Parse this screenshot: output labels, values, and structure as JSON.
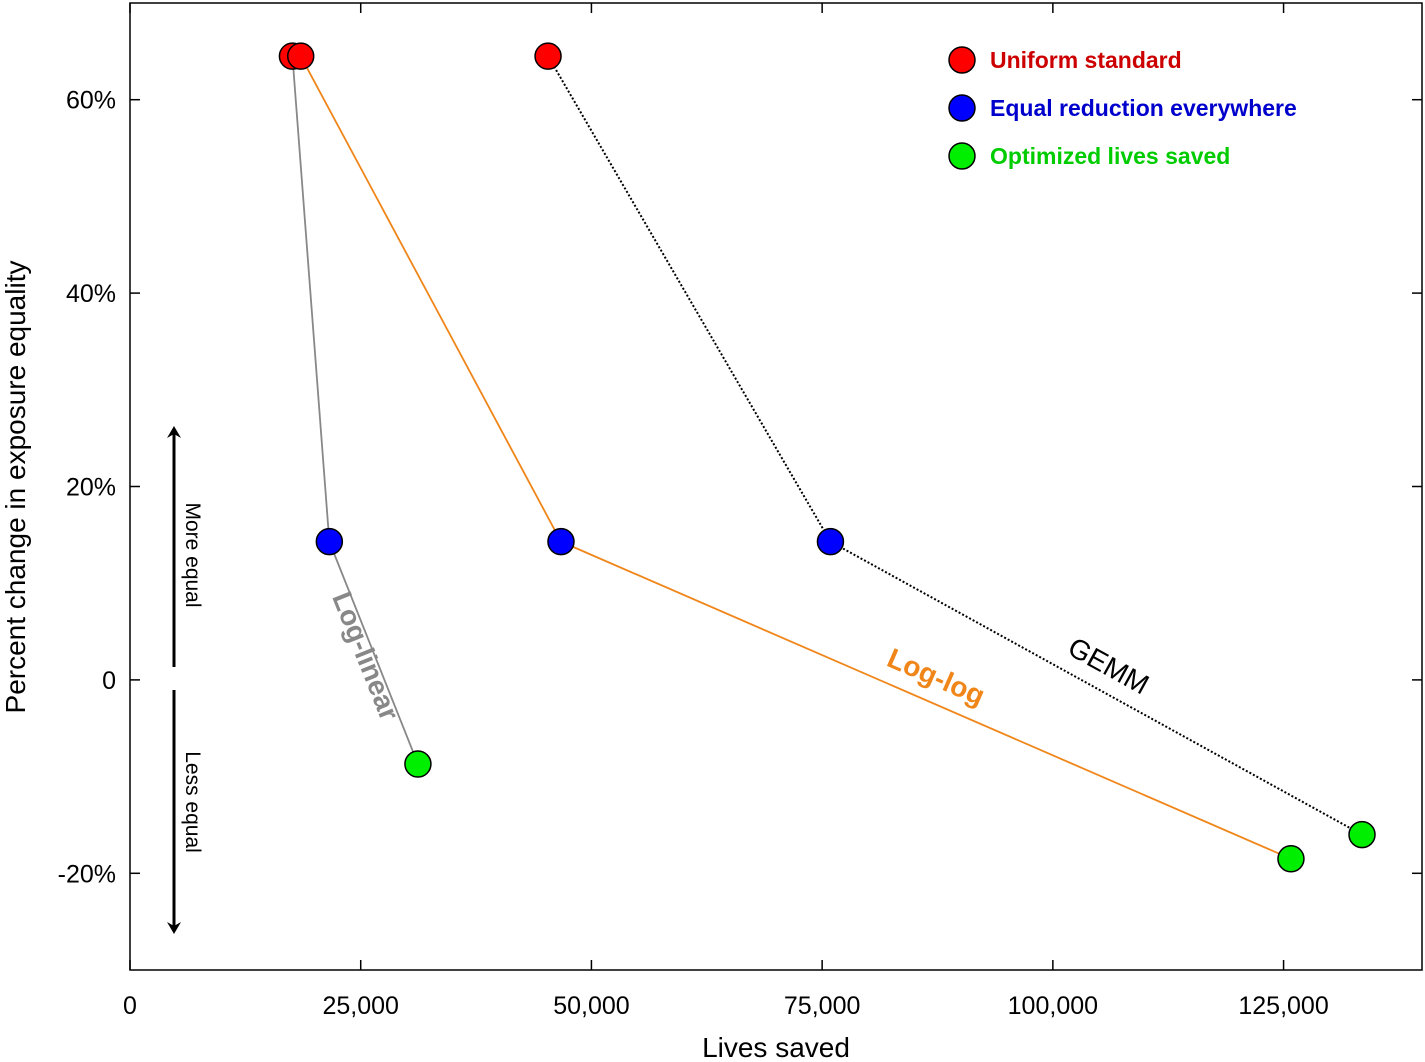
{
  "chart_data": {
    "type": "scatter",
    "title": "",
    "xlabel": "Lives saved",
    "ylabel": "Percent change in exposure equality",
    "xlim": [
      0,
      140000
    ],
    "ylim": [
      -30,
      70
    ],
    "x_ticks": [
      {
        "value": 0,
        "label": "0"
      },
      {
        "value": 25000,
        "label": "25,000"
      },
      {
        "value": 50000,
        "label": "50,000"
      },
      {
        "value": 75000,
        "label": "75,000"
      },
      {
        "value": 100000,
        "label": "100,000"
      },
      {
        "value": 125000,
        "label": "125,000"
      }
    ],
    "y_ticks": [
      {
        "value": -20,
        "label": "-20%"
      },
      {
        "value": 0,
        "label": "0"
      },
      {
        "value": 20,
        "label": "20%"
      },
      {
        "value": 40,
        "label": "40%"
      },
      {
        "value": 60,
        "label": "60%"
      }
    ],
    "grid": false,
    "legend_position": "top-right",
    "point_types": [
      {
        "key": "uniform",
        "name": "Uniform standard",
        "color": "#ff0000",
        "label_color": "#cc0000"
      },
      {
        "key": "equal",
        "name": "Equal reduction everywhere",
        "color": "#0000ff",
        "label_color": "#0000cc"
      },
      {
        "key": "optimized",
        "name": "Optimized lives saved",
        "color": "#00ee00",
        "label_color": "#00cc00"
      }
    ],
    "series": [
      {
        "name": "Log-linear",
        "line_color": "#888888",
        "label_color": "#888888",
        "label_bold": true,
        "dash": "",
        "points": [
          {
            "type": "uniform",
            "x": 17600,
            "y": 64.5
          },
          {
            "type": "equal",
            "x": 21600,
            "y": 14.3
          },
          {
            "type": "optimized",
            "x": 31200,
            "y": -8.7
          }
        ]
      },
      {
        "name": "Log-log",
        "line_color": "#f0861a",
        "label_color": "#f0861a",
        "label_bold": true,
        "dash": "",
        "points": [
          {
            "type": "uniform",
            "x": 18500,
            "y": 64.5
          },
          {
            "type": "equal",
            "x": 46700,
            "y": 14.3
          },
          {
            "type": "optimized",
            "x": 125800,
            "y": -18.5
          }
        ]
      },
      {
        "name": "GEMM",
        "line_color": "#000000",
        "label_color": "#000000",
        "label_bold": false,
        "dash": "2,2",
        "points": [
          {
            "type": "uniform",
            "x": 45300,
            "y": 64.5
          },
          {
            "type": "equal",
            "x": 75900,
            "y": 14.3
          },
          {
            "type": "optimized",
            "x": 133500,
            "y": -16.0
          }
        ]
      }
    ],
    "annotations": {
      "more_equal": "More equal",
      "less_equal": "Less equal"
    }
  }
}
